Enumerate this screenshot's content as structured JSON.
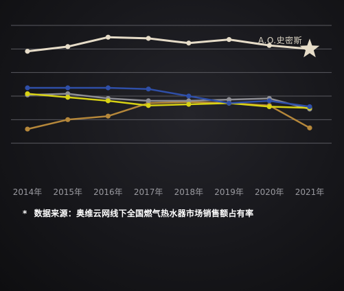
{
  "chart_data": {
    "type": "line",
    "categories": [
      "2014年",
      "2015年",
      "2016年",
      "2017年",
      "2018年",
      "2019年",
      "2020年",
      "2021年"
    ],
    "ylim": [
      0,
      6
    ],
    "grid": true,
    "series": [
      {
        "name": "A.O.史密斯",
        "color": "#e6dcc8",
        "marker": "star",
        "values": [
          4.9,
          5.1,
          5.5,
          5.45,
          5.25,
          5.4,
          5.15,
          5.0
        ]
      },
      {
        "name": "",
        "color": "#2f4fa8",
        "values": [
          3.35,
          3.35,
          3.35,
          3.3,
          3.0,
          2.7,
          2.8,
          2.55
        ]
      },
      {
        "name": "",
        "color": "#8e8e94",
        "values": [
          3.05,
          3.1,
          2.9,
          2.8,
          2.8,
          2.85,
          2.9,
          2.45
        ]
      },
      {
        "name": "",
        "color": "#d8d214",
        "values": [
          3.1,
          2.95,
          2.8,
          2.6,
          2.65,
          2.7,
          2.55,
          2.5
        ]
      },
      {
        "name": "",
        "color": "#b5873a",
        "values": [
          1.6,
          2.0,
          2.15,
          2.7,
          2.75,
          2.7,
          2.6,
          1.65
        ]
      }
    ],
    "label": "A.O.史密斯",
    "source_note": "数据来源：奥维云网线下全国燃气热水器市场销售额占有率",
    "source_prefix": "*"
  }
}
